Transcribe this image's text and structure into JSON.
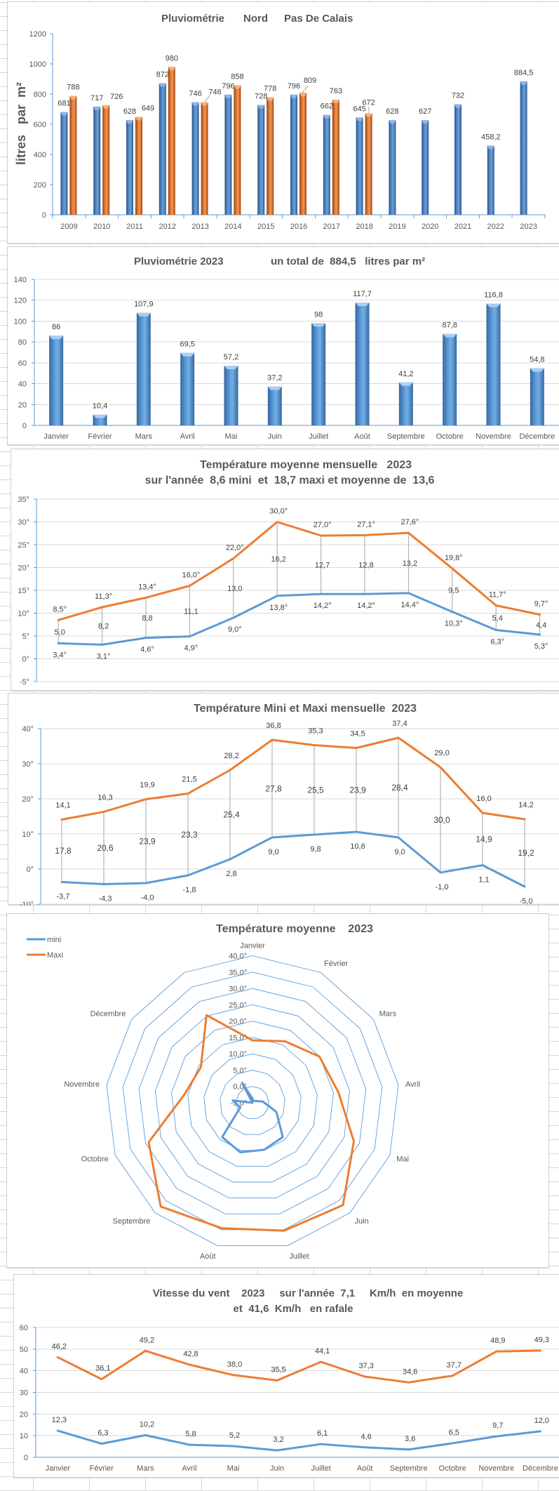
{
  "chart_data": [
    {
      "type": "bar",
      "title": "Pluviométrie   Nord   Pas De Calais",
      "title_parts": [
        {
          "text": "Pluviométrie",
          "color": "#595959"
        },
        {
          "text": "Nord",
          "color": "#00B0F0"
        },
        {
          "text": "Pas De Calais",
          "color": "#C00000"
        }
      ],
      "xlabel": "",
      "ylabel": "litres   par  m²",
      "categories": [
        "2009",
        "2010",
        "2011",
        "2012",
        "2013",
        "2014",
        "2015",
        "2016",
        "2017",
        "2018",
        "2019",
        "2020",
        "2021",
        "2022",
        "2023"
      ],
      "ylim": [
        0,
        1200
      ],
      "yticks": [
        0,
        200,
        400,
        600,
        800,
        1000,
        1200
      ],
      "ytick_labels": [
        "0",
        "200",
        "400",
        "600",
        "800",
        "1000",
        "1200"
      ],
      "grid": false,
      "legend": "none",
      "series": [
        {
          "name": "Nord",
          "color": "#4F81BD",
          "values": [
            681,
            717,
            628,
            872,
            746,
            796,
            728,
            796,
            662,
            645,
            628,
            627,
            732,
            458.2,
            884.5
          ],
          "labels": [
            "681",
            "717",
            "628",
            "872",
            "746",
            "796",
            "728",
            "796",
            "662",
            "645",
            "628",
            "627",
            "732",
            "458,2",
            "884,5"
          ]
        },
        {
          "name": "Pas De Calais",
          "color": "#ED7D31",
          "values": [
            788,
            726,
            649,
            980,
            746,
            858,
            778,
            809,
            763,
            672,
            null,
            null,
            null,
            null,
            null
          ],
          "labels": [
            "788",
            "726",
            "649",
            "980",
            "746",
            "858",
            "778",
            "809",
            "763",
            "672"
          ]
        }
      ]
    },
    {
      "type": "bar",
      "title": "Pluviométrie 2023",
      "subtitle": "un total de  884,5   litres par m²",
      "xlabel": "",
      "ylabel": "",
      "categories": [
        "Janvier",
        "Février",
        "Mars",
        "Avril",
        "Mai",
        "Juin",
        "Juillet",
        "Août",
        "Septembre",
        "Octobre",
        "Novembre",
        "Décembre"
      ],
      "ylim": [
        0,
        140
      ],
      "yticks": [
        0,
        20,
        40,
        60,
        80,
        100,
        120,
        140
      ],
      "ytick_labels": [
        "0",
        "20",
        "40",
        "60",
        "80",
        "100",
        "120",
        "140"
      ],
      "grid": true,
      "legend": "none",
      "series": [
        {
          "name": "Pluviométrie 2023",
          "color": "#5B9BD5",
          "values": [
            86,
            10.4,
            107.9,
            69.5,
            57.2,
            37.2,
            98,
            117.7,
            41.2,
            87.8,
            116.8,
            54.8
          ],
          "labels": [
            "86",
            "10,4",
            "107,9",
            "69,5",
            "57,2",
            "37,2",
            "98",
            "117,7",
            "41,2",
            "87,8",
            "116,8",
            "54,8"
          ]
        }
      ]
    },
    {
      "type": "line",
      "title": "Température moyenne mensuelle   2023",
      "subtitle": "sur l'année  8,6 mini  et  18,7 maxi et moyenne de  13,6",
      "xlabel": "",
      "ylabel": "",
      "x": [
        1,
        2,
        3,
        4,
        5,
        6,
        7,
        8,
        9,
        10,
        11,
        12
      ],
      "ylim": [
        -5,
        35
      ],
      "yticks": [
        -5,
        0,
        5,
        10,
        15,
        20,
        25,
        30,
        35
      ],
      "ytick_labels": [
        "-5°",
        "0°",
        "5°",
        "10°",
        "15°",
        "20°",
        "25°",
        "30°",
        "35°"
      ],
      "grid": true,
      "legend": "none",
      "series": [
        {
          "name": "Maxi",
          "color": "#ED7D31",
          "label_color": "#B5520F",
          "values": [
            8.5,
            11.3,
            13.4,
            16.0,
            22.0,
            30.0,
            27.0,
            27.1,
            27.6,
            19.8,
            11.7,
            9.7
          ],
          "labels": [
            "8,5°",
            "11,3°",
            "13,4°",
            "16,0°",
            "22,0°",
            "30,0°",
            "27,0°",
            "27,1°",
            "27,6°",
            "19,8°",
            "11,7°",
            "9,7°"
          ]
        },
        {
          "name": "mini",
          "color": "#5B9BD5",
          "label_color": "#2E75B6",
          "values": [
            3.4,
            3.1,
            4.6,
            4.9,
            9.0,
            13.8,
            14.2,
            14.2,
            14.4,
            10.3,
            6.3,
            5.3
          ],
          "labels": [
            "3,4°",
            "3,1°",
            "4,6°",
            "4,9°",
            "9,0°",
            "13,8°",
            "14,2°",
            "14,2°",
            "14,4°",
            "10,3°",
            "6,3°",
            "5,3°"
          ]
        }
      ],
      "range_labels": {
        "label_color": "#404040",
        "values": [
          5.0,
          8.2,
          8.8,
          11.1,
          13.0,
          16.2,
          12.7,
          12.8,
          13.2,
          9.5,
          5.4,
          4.4
        ],
        "labels": [
          "5,0",
          "8,2",
          "8,8",
          "11,1",
          "13,0",
          "16,2",
          "12,7",
          "12,8",
          "13,2",
          "9,5",
          "5,4",
          "4,4"
        ]
      }
    },
    {
      "type": "line",
      "title": "Température Mini et Maxi mensuelle  2023",
      "xlabel": "",
      "ylabel": "",
      "x": [
        1,
        2,
        3,
        4,
        5,
        6,
        7,
        8,
        9,
        10,
        11,
        12
      ],
      "ylim": [
        -10,
        40
      ],
      "yticks": [
        -10,
        0,
        10,
        20,
        30,
        40
      ],
      "ytick_labels": [
        "-10°",
        "0°",
        "10°",
        "20°",
        "30°",
        "40°"
      ],
      "grid": true,
      "legend": "none",
      "series": [
        {
          "name": "Maxi",
          "color": "#ED7D31",
          "label_color": "#B5520F",
          "values": [
            14.1,
            16.3,
            19.9,
            21.5,
            28.2,
            36.8,
            35.3,
            34.5,
            37.4,
            29.0,
            16.0,
            14.2
          ],
          "labels": [
            "14,1",
            "16,3",
            "19,9",
            "21,5",
            "28,2",
            "36,8",
            "35,3",
            "34,5",
            "37,4",
            "29,0",
            "16,0",
            "14,2"
          ]
        },
        {
          "name": "mini",
          "color": "#5B9BD5",
          "label_color": "#2E75B6",
          "values": [
            -3.7,
            -4.3,
            -4.0,
            -1.8,
            2.8,
            9.0,
            9.8,
            10.6,
            9.0,
            -1.0,
            1.1,
            -5.0
          ],
          "labels": [
            "-3,7",
            "-4,3",
            "-4,0",
            "-1,8",
            "2,8",
            "9,0",
            "9,8",
            "10,6",
            "9,0",
            "-1,0",
            "1,1",
            "-5,0"
          ]
        }
      ],
      "range_labels": {
        "label_color": "#000000",
        "values": [
          17.8,
          20.6,
          23.9,
          23.3,
          25.4,
          27.8,
          25.5,
          23.9,
          28.4,
          30.0,
          14.9,
          19.2
        ],
        "labels": [
          "17,8",
          "20,6",
          "23,9",
          "23,3",
          "25,4",
          "27,8",
          "25,5",
          "23,9",
          "28,4",
          "30,0",
          "14,9",
          "19,2"
        ]
      }
    },
    {
      "type": "radar",
      "title": "Température moyenne    2023",
      "categories": [
        "Janvier",
        "Février",
        "Mars",
        "Avril",
        "Mai",
        "Juin",
        "Juillet",
        "Août",
        "Septembre",
        "Octobre",
        "Novembre",
        "Décembre",
        ""
      ],
      "rlim": [
        -5,
        40
      ],
      "rticks": [
        -5,
        0,
        5,
        10,
        15,
        20,
        25,
        30,
        35,
        40
      ],
      "rtick_labels": [
        "-5,0°",
        "0,0°",
        "5,0°",
        "10,0°",
        "15,0°",
        "20,0°",
        "25,0°",
        "30,0°",
        "35,0°",
        "40,0°"
      ],
      "grid": true,
      "legend": "top-left",
      "series": [
        {
          "name": "mini",
          "color": "#5B9BD5",
          "values": [
            -3.7,
            -4.3,
            -4.0,
            -1.8,
            2.8,
            9.0,
            9.8,
            10.6,
            9.0,
            -1.0,
            1.1,
            -5.0,
            1.9
          ]
        },
        {
          "name": "Maxi",
          "color": "#ED7D31",
          "values": [
            14.1,
            16.3,
            19.9,
            21.5,
            28.2,
            36.8,
            35.3,
            34.5,
            37.4,
            29.0,
            16.0,
            14.2,
            25.3
          ]
        }
      ]
    },
    {
      "type": "line",
      "title": "Vitesse du vent    2023     sur l'année  7,1     Km/h  en moyenne",
      "subtitle": "et  41,6  Km/h   en rafale",
      "xlabel": "",
      "ylabel": "",
      "categories": [
        "Janvier",
        "Février",
        "Mars",
        "Avril",
        "Mai",
        "Juin",
        "Juillet",
        "Août",
        "Septembre",
        "Octobre",
        "Novembre",
        "Décembre"
      ],
      "ylim": [
        0,
        60
      ],
      "yticks": [
        0,
        10,
        20,
        30,
        40,
        50,
        60
      ],
      "ytick_labels": [
        "0",
        "10",
        "20",
        "30",
        "40",
        "50",
        "60"
      ],
      "grid": true,
      "legend": "none",
      "series": [
        {
          "name": "rafale",
          "color": "#ED7D31",
          "label_color": "#9E480E",
          "values": [
            46.2,
            36.1,
            49.2,
            42.8,
            38.0,
            35.5,
            44.1,
            37.3,
            34.6,
            37.7,
            48.9,
            49.3
          ],
          "labels": [
            "46,2",
            "36,1",
            "49,2",
            "42,8",
            "38,0",
            "35,5",
            "44,1",
            "37,3",
            "34,6",
            "37,7",
            "48,9",
            "49,3"
          ]
        },
        {
          "name": "moyenne",
          "color": "#5B9BD5",
          "label_color": "#2E75B6",
          "values": [
            12.3,
            6.3,
            10.2,
            5.8,
            5.2,
            3.2,
            6.1,
            4.6,
            3.6,
            6.5,
            9.7,
            12.0
          ],
          "labels": [
            "12,3",
            "6,3",
            "10,2",
            "5,8",
            "5,2",
            "3,2",
            "6,1",
            "4,6",
            "3,6",
            "6,5",
            "9,7",
            "12,0"
          ]
        }
      ]
    }
  ]
}
